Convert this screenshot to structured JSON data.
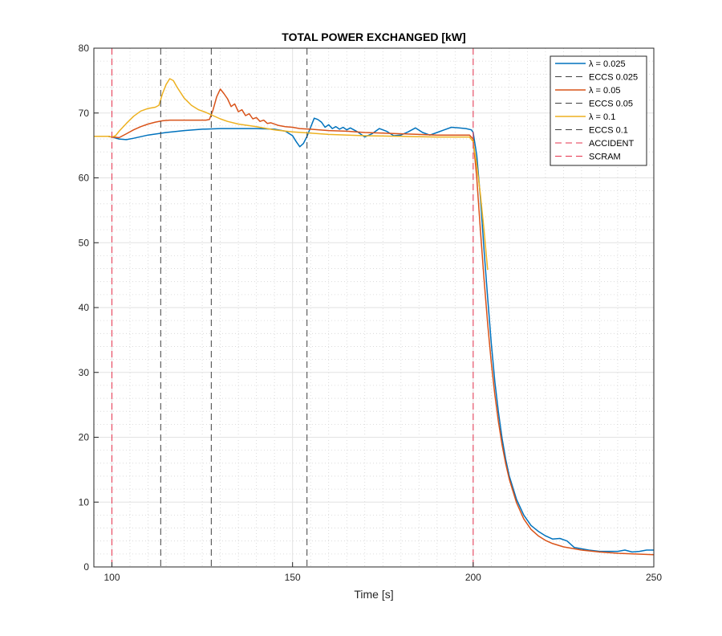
{
  "chart_data": {
    "type": "line",
    "title": "TOTAL POWER EXCHANGED [kW]",
    "xlabel": "Time [s]",
    "ylabel": "",
    "xlim": [
      95,
      250
    ],
    "ylim": [
      0,
      80
    ],
    "xticks": [
      100,
      150,
      200,
      250
    ],
    "yticks": [
      0,
      10,
      20,
      30,
      40,
      50,
      60,
      70,
      80
    ],
    "x_minor_step": 5,
    "y_minor_step": 2,
    "grid": true,
    "legend_position": "top-right",
    "series": [
      {
        "name": "λ = 0.025",
        "color": "#0072BD",
        "points": [
          [
            95,
            66.4
          ],
          [
            99,
            66.4
          ],
          [
            100,
            66.3
          ],
          [
            102,
            66.0
          ],
          [
            104,
            65.9
          ],
          [
            106,
            66.1
          ],
          [
            110,
            66.6
          ],
          [
            115,
            67.0
          ],
          [
            120,
            67.3
          ],
          [
            125,
            67.5
          ],
          [
            130,
            67.6
          ],
          [
            135,
            67.6
          ],
          [
            140,
            67.6
          ],
          [
            145,
            67.5
          ],
          [
            148,
            67.2
          ],
          [
            150,
            66.5
          ],
          [
            151,
            65.6
          ],
          [
            152,
            64.8
          ],
          [
            153,
            65.3
          ],
          [
            154,
            66.4
          ],
          [
            155,
            67.8
          ],
          [
            156,
            69.2
          ],
          [
            157,
            69.0
          ],
          [
            158,
            68.6
          ],
          [
            159,
            67.8
          ],
          [
            160,
            68.2
          ],
          [
            161,
            67.6
          ],
          [
            162,
            67.9
          ],
          [
            163,
            67.5
          ],
          [
            164,
            67.8
          ],
          [
            165,
            67.4
          ],
          [
            166,
            67.7
          ],
          [
            168,
            67.1
          ],
          [
            170,
            66.3
          ],
          [
            172,
            66.8
          ],
          [
            174,
            67.6
          ],
          [
            176,
            67.2
          ],
          [
            178,
            66.5
          ],
          [
            180,
            66.6
          ],
          [
            182,
            67.1
          ],
          [
            184,
            67.7
          ],
          [
            186,
            67.0
          ],
          [
            188,
            66.6
          ],
          [
            190,
            67.0
          ],
          [
            192,
            67.4
          ],
          [
            194,
            67.8
          ],
          [
            196,
            67.7
          ],
          [
            198,
            67.6
          ],
          [
            199.5,
            67.4
          ],
          [
            200,
            67.0
          ],
          [
            201,
            63.5
          ],
          [
            202,
            57.0
          ],
          [
            203,
            49.0
          ],
          [
            204,
            41.5
          ],
          [
            205,
            34.5
          ],
          [
            206,
            28.5
          ],
          [
            207,
            23.8
          ],
          [
            208,
            19.8
          ],
          [
            209,
            16.6
          ],
          [
            210,
            14.0
          ],
          [
            212,
            10.4
          ],
          [
            214,
            8.0
          ],
          [
            216,
            6.4
          ],
          [
            218,
            5.5
          ],
          [
            220,
            4.8
          ],
          [
            222,
            4.3
          ],
          [
            224,
            4.4
          ],
          [
            226,
            4.0
          ],
          [
            228,
            3.0
          ],
          [
            230,
            2.8
          ],
          [
            232,
            2.6
          ],
          [
            235,
            2.4
          ],
          [
            240,
            2.4
          ],
          [
            242,
            2.6
          ],
          [
            244,
            2.3
          ],
          [
            246,
            2.4
          ],
          [
            248,
            2.6
          ],
          [
            250,
            2.6
          ]
        ]
      },
      {
        "name": "ECCS 0.025",
        "color": "#404040",
        "dashed": true,
        "vline": 154
      },
      {
        "name": "λ = 0.05",
        "color": "#D95319",
        "points": [
          [
            95,
            66.4
          ],
          [
            99,
            66.4
          ],
          [
            100,
            66.3
          ],
          [
            102,
            66.2
          ],
          [
            104,
            66.8
          ],
          [
            106,
            67.4
          ],
          [
            108,
            67.9
          ],
          [
            110,
            68.3
          ],
          [
            112,
            68.6
          ],
          [
            114,
            68.8
          ],
          [
            116,
            68.9
          ],
          [
            120,
            68.9
          ],
          [
            126,
            68.9
          ],
          [
            127,
            69.0
          ],
          [
            128,
            70.5
          ],
          [
            129,
            72.5
          ],
          [
            130,
            73.7
          ],
          [
            131,
            73.0
          ],
          [
            132,
            72.2
          ],
          [
            133,
            71.0
          ],
          [
            134,
            71.4
          ],
          [
            135,
            70.2
          ],
          [
            136,
            70.5
          ],
          [
            137,
            69.6
          ],
          [
            138,
            69.9
          ],
          [
            139,
            69.1
          ],
          [
            140,
            69.3
          ],
          [
            141,
            68.7
          ],
          [
            142,
            68.9
          ],
          [
            143,
            68.4
          ],
          [
            144,
            68.5
          ],
          [
            146,
            68.1
          ],
          [
            148,
            67.9
          ],
          [
            150,
            67.8
          ],
          [
            152,
            67.6
          ],
          [
            155,
            67.5
          ],
          [
            160,
            67.3
          ],
          [
            165,
            67.2
          ],
          [
            170,
            67.0
          ],
          [
            175,
            66.9
          ],
          [
            180,
            66.8
          ],
          [
            185,
            66.7
          ],
          [
            190,
            66.6
          ],
          [
            195,
            66.6
          ],
          [
            199,
            66.6
          ],
          [
            200,
            66.0
          ],
          [
            201,
            60.0
          ],
          [
            202,
            52.0
          ],
          [
            203,
            44.5
          ],
          [
            204,
            37.5
          ],
          [
            205,
            31.5
          ],
          [
            206,
            26.5
          ],
          [
            207,
            22.3
          ],
          [
            208,
            18.8
          ],
          [
            209,
            15.9
          ],
          [
            210,
            13.5
          ],
          [
            212,
            9.9
          ],
          [
            214,
            7.4
          ],
          [
            216,
            5.8
          ],
          [
            218,
            4.8
          ],
          [
            220,
            4.1
          ],
          [
            222,
            3.6
          ],
          [
            225,
            3.1
          ],
          [
            228,
            2.8
          ],
          [
            230,
            2.6
          ],
          [
            235,
            2.3
          ],
          [
            240,
            2.1
          ],
          [
            245,
            2.0
          ],
          [
            250,
            1.9
          ]
        ]
      },
      {
        "name": "ECCS 0.05",
        "color": "#404040",
        "dashed": true,
        "vline": 127.5
      },
      {
        "name": "λ = 0.1",
        "color": "#EDB120",
        "points": [
          [
            95,
            66.4
          ],
          [
            99,
            66.4
          ],
          [
            100,
            66.3
          ],
          [
            101,
            66.5
          ],
          [
            102,
            67.2
          ],
          [
            104,
            68.4
          ],
          [
            106,
            69.5
          ],
          [
            108,
            70.3
          ],
          [
            110,
            70.7
          ],
          [
            112,
            70.9
          ],
          [
            113,
            71.2
          ],
          [
            114,
            73.0
          ],
          [
            115,
            74.4
          ],
          [
            116,
            75.3
          ],
          [
            117,
            75.0
          ],
          [
            118,
            74.0
          ],
          [
            120,
            72.3
          ],
          [
            122,
            71.2
          ],
          [
            124,
            70.5
          ],
          [
            126,
            70.1
          ],
          [
            128,
            69.6
          ],
          [
            130,
            69.1
          ],
          [
            132,
            68.7
          ],
          [
            135,
            68.3
          ],
          [
            140,
            67.9
          ],
          [
            145,
            67.4
          ],
          [
            150,
            67.1
          ],
          [
            155,
            66.9
          ],
          [
            160,
            66.7
          ],
          [
            170,
            66.5
          ],
          [
            180,
            66.4
          ],
          [
            190,
            66.3
          ],
          [
            199,
            66.3
          ],
          [
            200,
            65.6
          ],
          [
            201,
            62.0
          ],
          [
            202,
            57.5
          ],
          [
            203,
            52.0
          ],
          [
            204,
            45.8
          ]
        ]
      },
      {
        "name": "ECCS 0.1",
        "color": "#404040",
        "dashed": true,
        "vline": 113.5
      },
      {
        "name": "ACCIDENT",
        "color": "#E6334D",
        "dashed": true,
        "vline": 100
      },
      {
        "name": "SCRAM",
        "color": "#E6334D",
        "dashed": true,
        "vline": 200
      }
    ]
  }
}
